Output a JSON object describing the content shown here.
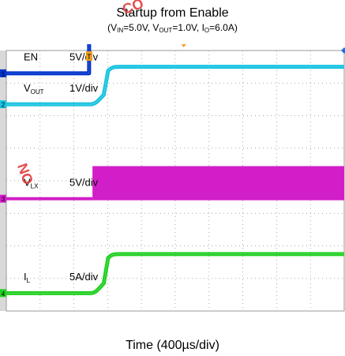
{
  "chart_data": {
    "type": "line",
    "title": "Startup from Enable",
    "subtitle_parts": [
      "(V",
      "IN",
      "=5.0V, V",
      "OUT",
      "=1.0V, I",
      "O",
      "=6.0A)"
    ],
    "xlabel": "Time (400µs/div)",
    "x_divisions": 10,
    "y_divisions": 8,
    "background": "#ffffff",
    "grid": true,
    "series": [
      {
        "name": "EN",
        "scale": "5V/div",
        "color": "#0033cc",
        "channel_marker": "1",
        "subscript": "",
        "level_low_div": 0.0,
        "level_high_div": 1.1,
        "baseline_div": 3.3,
        "transition_div": 2.45,
        "rise_time_div": 0.0
      },
      {
        "name": "V",
        "subscript": "OUT",
        "scale": "1V/div",
        "color": "#19c3e0",
        "channel_marker": "2",
        "level_low_div": 0.0,
        "level_high_div": 1.15,
        "baseline_div": 2.35,
        "transition_div": 2.65,
        "rise_time_div": 0.55
      },
      {
        "name": "V",
        "subscript": "LX",
        "scale": "5V/div",
        "color": "#d21ec8",
        "channel_marker": "3",
        "level_low_div": 0.0,
        "level_high_div": 1.0,
        "baseline_div": -0.55,
        "transition_div": 2.55,
        "rise_time_div": 0.0
      },
      {
        "name": "I",
        "subscript": "L",
        "scale": "5A/div",
        "color": "#21d021",
        "channel_marker": "4",
        "level_low_div": 0.0,
        "level_high_div": 1.2,
        "baseline_div": -3.45,
        "transition_div": 2.65,
        "rise_time_div": 0.55
      }
    ],
    "trigger_marker": "T"
  },
  "watermark": [
    "CO",
    "NO"
  ]
}
